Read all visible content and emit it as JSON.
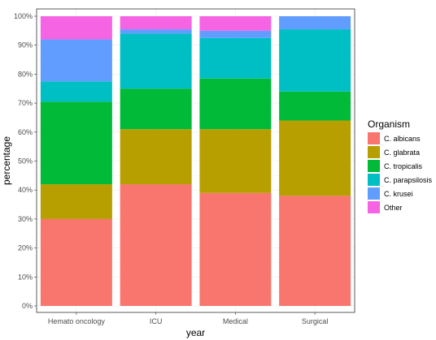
{
  "chart_data": {
    "type": "bar",
    "stacked": true,
    "xlabel": "year",
    "ylabel": "percentage",
    "categories": [
      "Hemato oncology",
      "ICU",
      "Medical",
      "Surgical"
    ],
    "ylim": [
      0,
      100
    ],
    "y_ticks": [
      "0%",
      "10%",
      "20%",
      "30%",
      "40%",
      "50%",
      "60%",
      "70%",
      "80%",
      "90%",
      "100%"
    ],
    "legend": {
      "title": "Organism",
      "position": "right"
    },
    "series": [
      {
        "name": "C. albicans",
        "color": "#F8766D",
        "values": [
          30,
          42,
          39,
          38
        ]
      },
      {
        "name": "C. glabrata",
        "color": "#B79F00",
        "values": [
          12,
          19,
          22,
          26
        ]
      },
      {
        "name": "C. tropicalis",
        "color": "#00BA38",
        "values": [
          28.5,
          14,
          17.5,
          10
        ]
      },
      {
        "name": "C. parapsilosis",
        "color": "#00BFC4",
        "values": [
          7,
          19,
          14,
          21.5
        ]
      },
      {
        "name": "C. krusei",
        "color": "#619CFF",
        "values": [
          14.5,
          1.5,
          2.5,
          4.5
        ]
      },
      {
        "name": "Other",
        "color": "#F564E3",
        "values": [
          8,
          4.5,
          5,
          0
        ]
      }
    ],
    "panel_background": "#FFFFFF",
    "grid": true,
    "grid_color": "#EBEBEB",
    "panel_border_color": "#333333"
  }
}
